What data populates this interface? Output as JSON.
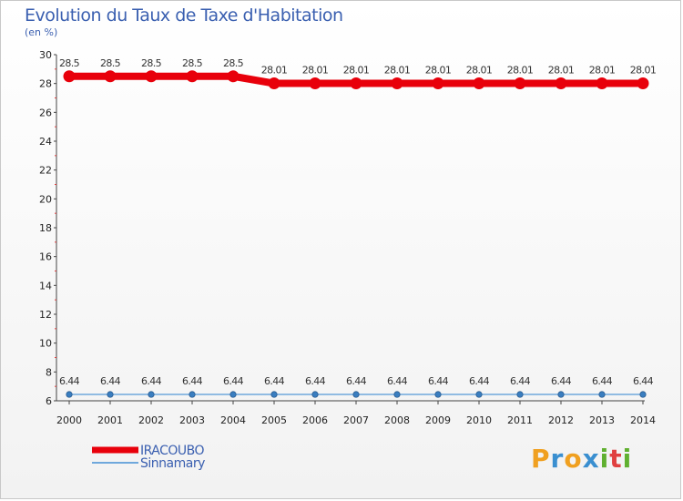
{
  "header": {
    "title": "Evolution du Taux de Taxe d'Habitation",
    "subtitle": "(en %)"
  },
  "brand": {
    "letters": [
      "P",
      "r",
      "o",
      "x",
      "i",
      "t",
      "i"
    ],
    "colors": [
      "#f0a020",
      "#3a8fd0",
      "#f0a020",
      "#3a8fd0",
      "#60b030",
      "#e04040",
      "#60b030"
    ]
  },
  "chart_data": {
    "type": "line",
    "title": "Evolution du Taux de Taxe d'Habitation",
    "subtitle": "(en %)",
    "xlabel": "",
    "ylabel": "",
    "x": [
      "2000",
      "2001",
      "2002",
      "2003",
      "2004",
      "2005",
      "2006",
      "2007",
      "2008",
      "2009",
      "2010",
      "2011",
      "2012",
      "2013",
      "2014"
    ],
    "ylim": [
      6,
      30
    ],
    "yticks": [
      6,
      8,
      10,
      12,
      14,
      16,
      18,
      20,
      22,
      24,
      26,
      28,
      30
    ],
    "grid": false,
    "legend": "bottom-left",
    "series": [
      {
        "name": "IRACOUBO",
        "color": "#e8000b",
        "values": [
          28.5,
          28.5,
          28.5,
          28.5,
          28.5,
          28.01,
          28.01,
          28.01,
          28.01,
          28.01,
          28.01,
          28.01,
          28.01,
          28.01,
          28.01
        ],
        "labels": [
          "28.5",
          "28.5",
          "28.5",
          "28.5",
          "28.5",
          "28.01",
          "28.01",
          "28.01",
          "28.01",
          "28.01",
          "28.01",
          "28.01",
          "28.01",
          "28.01",
          "28.01"
        ]
      },
      {
        "name": "Sinnamary",
        "color": "#6fa8dc",
        "values": [
          6.44,
          6.44,
          6.44,
          6.44,
          6.44,
          6.44,
          6.44,
          6.44,
          6.44,
          6.44,
          6.44,
          6.44,
          6.44,
          6.44,
          6.44
        ],
        "labels": [
          "6.44",
          "6.44",
          "6.44",
          "6.44",
          "6.44",
          "6.44",
          "6.44",
          "6.44",
          "6.44",
          "6.44",
          "6.44",
          "6.44",
          "6.44",
          "6.44",
          "6.44"
        ]
      }
    ]
  }
}
